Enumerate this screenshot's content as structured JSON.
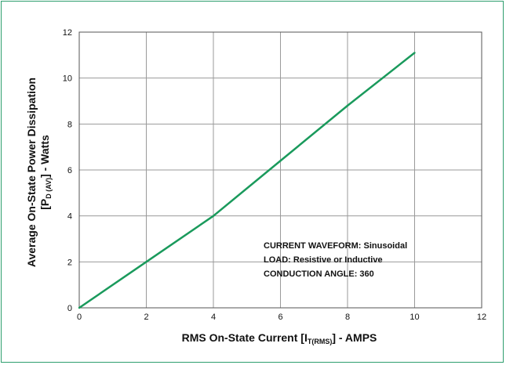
{
  "chart_data": {
    "type": "line",
    "title": "",
    "x": [
      0,
      2,
      4,
      6,
      8,
      10
    ],
    "series": [
      {
        "values": [
          0,
          2,
          4,
          6.4,
          8.8,
          11.1
        ],
        "color": "#1a9a5c"
      }
    ],
    "xlabel": {
      "main": "RMS On-State Current [I",
      "sub": "T(RMS)",
      "tail": "] - AMPS"
    },
    "ylabel": {
      "line1": "Average On-State Power Dissipation",
      "line2_pre": "[P",
      "line2_sub": "D (AV)",
      "line2_post": "] - Watts"
    },
    "xlim": [
      0,
      12
    ],
    "ylim": [
      0,
      12
    ],
    "xticks": [
      "0",
      "2",
      "4",
      "6",
      "8",
      "10",
      "12"
    ],
    "yticks": [
      "0",
      "2",
      "4",
      "6",
      "8",
      "10",
      "12"
    ],
    "grid": true,
    "annotations": [
      "CURRENT  WAVEFORM:  Sinusoidal",
      "LOAD:  Resistive or Inductive",
      "CONDUCTION ANGLE:  360"
    ],
    "colors": {
      "frame": "#2e9e6e",
      "line": "#1a9a5c",
      "grid": "#9a9a9a"
    }
  }
}
